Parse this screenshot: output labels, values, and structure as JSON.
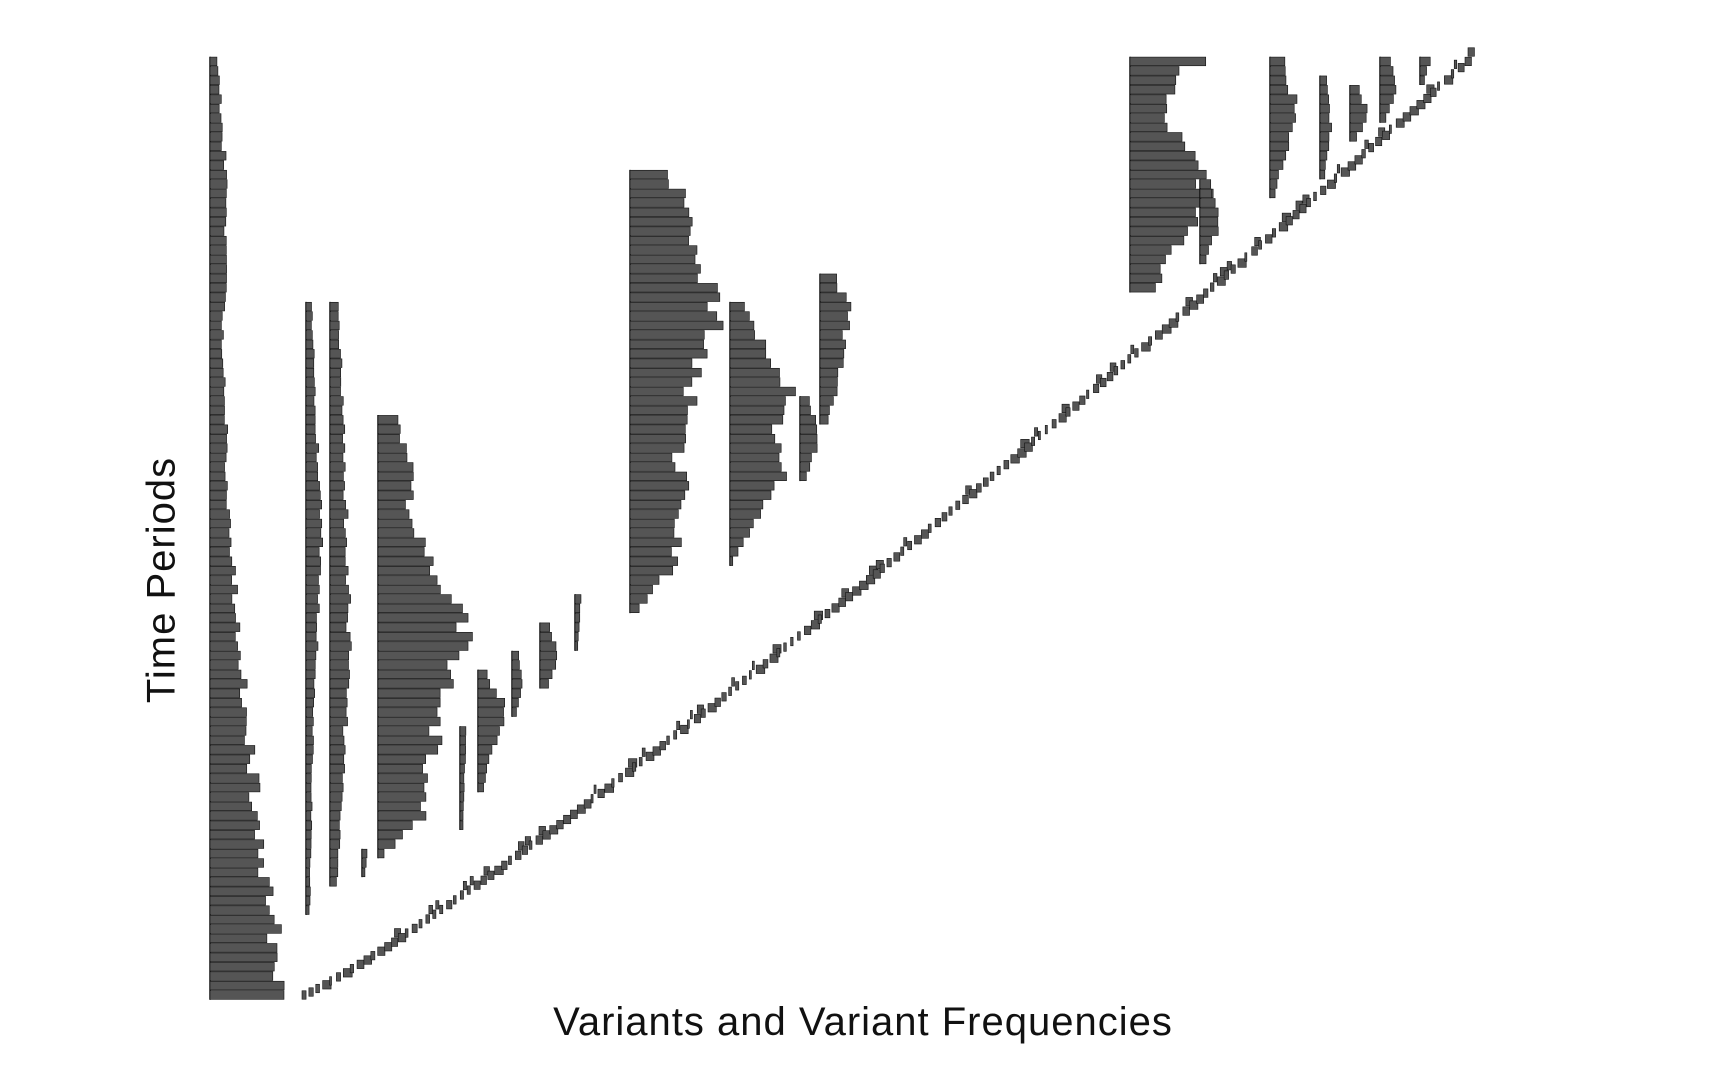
{
  "chart_data": {
    "type": "bar",
    "orientation": "horizontal",
    "xlabel": "Variants and Variant Frequencies",
    "ylabel": "Time Periods",
    "grid": false,
    "legend": "none",
    "periods": 100,
    "bar_color": "#555555",
    "variants": [
      {
        "start": 1,
        "end": 100,
        "offset": 0,
        "peak": 90,
        "profile": [
          [
            0,
            0.85
          ],
          [
            0.15,
            0.6
          ],
          [
            0.3,
            0.4
          ],
          [
            0.5,
            0.22
          ],
          [
            0.7,
            0.14
          ],
          [
            0.85,
            0.2
          ],
          [
            1,
            0.08
          ]
        ]
      },
      {
        "start": 10,
        "end": 74,
        "offset": 96,
        "peak": 18,
        "profile": [
          [
            0,
            0.2
          ],
          [
            0.3,
            0.4
          ],
          [
            0.6,
            0.9
          ],
          [
            0.8,
            0.6
          ],
          [
            1,
            0.3
          ]
        ]
      },
      {
        "start": 13,
        "end": 74,
        "offset": 120,
        "peak": 22,
        "profile": [
          [
            0,
            0.3
          ],
          [
            0.4,
            0.9
          ],
          [
            0.7,
            0.7
          ],
          [
            1,
            0.4
          ]
        ]
      },
      {
        "start": 14,
        "end": 16,
        "offset": 152,
        "peak": 6,
        "profile": [
          [
            0,
            0.5
          ],
          [
            1,
            1
          ]
        ]
      },
      {
        "start": 16,
        "end": 62,
        "offset": 168,
        "peak": 90,
        "profile": [
          [
            0,
            0.08
          ],
          [
            0.1,
            0.55
          ],
          [
            0.2,
            0.6
          ],
          [
            0.35,
            0.75
          ],
          [
            0.5,
            0.95
          ],
          [
            0.6,
            0.85
          ],
          [
            0.7,
            0.5
          ],
          [
            0.8,
            0.35
          ],
          [
            0.9,
            0.38
          ],
          [
            1,
            0.2
          ]
        ]
      },
      {
        "start": 19,
        "end": 29,
        "offset": 250,
        "peak": 6,
        "profile": [
          [
            0,
            0.5
          ],
          [
            1,
            1
          ]
        ]
      },
      {
        "start": 23,
        "end": 35,
        "offset": 268,
        "peak": 28,
        "profile": [
          [
            0,
            0.2
          ],
          [
            0.4,
            0.6
          ],
          [
            0.7,
            1
          ],
          [
            1,
            0.3
          ]
        ]
      },
      {
        "start": 31,
        "end": 37,
        "offset": 302,
        "peak": 12,
        "profile": [
          [
            0,
            0.4
          ],
          [
            0.5,
            1
          ],
          [
            1,
            0.5
          ]
        ]
      },
      {
        "start": 34,
        "end": 40,
        "offset": 330,
        "peak": 20,
        "profile": [
          [
            0,
            0.4
          ],
          [
            0.5,
            1
          ],
          [
            1,
            0.5
          ]
        ]
      },
      {
        "start": 38,
        "end": 43,
        "offset": 365,
        "peak": 6,
        "profile": [
          [
            0,
            0.5
          ],
          [
            1,
            1
          ]
        ]
      },
      {
        "start": 42,
        "end": 88,
        "offset": 420,
        "peak": 90,
        "profile": [
          [
            0,
            0.1
          ],
          [
            0.1,
            0.55
          ],
          [
            0.25,
            0.6
          ],
          [
            0.4,
            0.55
          ],
          [
            0.55,
            0.8
          ],
          [
            0.7,
            1
          ],
          [
            0.8,
            0.85
          ],
          [
            0.9,
            0.7
          ],
          [
            1,
            0.45
          ]
        ]
      },
      {
        "start": 47,
        "end": 74,
        "offset": 520,
        "peak": 65,
        "profile": [
          [
            0,
            0.05
          ],
          [
            0.2,
            0.55
          ],
          [
            0.35,
            0.85
          ],
          [
            0.5,
            0.65
          ],
          [
            0.65,
            1
          ],
          [
            0.8,
            0.6
          ],
          [
            1,
            0.25
          ]
        ]
      },
      {
        "start": 56,
        "end": 64,
        "offset": 590,
        "peak": 20,
        "profile": [
          [
            0,
            0.3
          ],
          [
            0.5,
            1
          ],
          [
            1,
            0.5
          ]
        ]
      },
      {
        "start": 62,
        "end": 77,
        "offset": 610,
        "peak": 30,
        "profile": [
          [
            0,
            0.3
          ],
          [
            0.4,
            0.8
          ],
          [
            0.8,
            1
          ],
          [
            1,
            0.5
          ]
        ]
      },
      {
        "start": 76,
        "end": 100,
        "offset": 920,
        "peak": 80,
        "profile": [
          [
            0,
            0.3
          ],
          [
            0.2,
            0.6
          ],
          [
            0.4,
            1
          ],
          [
            0.6,
            0.8
          ],
          [
            0.75,
            0.45
          ],
          [
            0.9,
            0.6
          ],
          [
            1,
            0.85
          ]
        ]
      },
      {
        "start": 79,
        "end": 87,
        "offset": 990,
        "peak": 20,
        "profile": [
          [
            0,
            0.3
          ],
          [
            0.5,
            1
          ],
          [
            1,
            0.5
          ]
        ]
      },
      {
        "start": 86,
        "end": 100,
        "offset": 1060,
        "peak": 30,
        "profile": [
          [
            0,
            0.2
          ],
          [
            0.3,
            0.5
          ],
          [
            0.55,
            1
          ],
          [
            0.8,
            0.7
          ],
          [
            1,
            0.5
          ]
        ]
      },
      {
        "start": 88,
        "end": 98,
        "offset": 1110,
        "peak": 12,
        "profile": [
          [
            0,
            0.4
          ],
          [
            0.5,
            1
          ],
          [
            1,
            0.5
          ]
        ]
      },
      {
        "start": 92,
        "end": 97,
        "offset": 1140,
        "peak": 18,
        "profile": [
          [
            0,
            0.4
          ],
          [
            0.5,
            1
          ],
          [
            1,
            0.6
          ]
        ]
      },
      {
        "start": 94,
        "end": 100,
        "offset": 1170,
        "peak": 16,
        "profile": [
          [
            0,
            0.4
          ],
          [
            0.5,
            1
          ],
          [
            1,
            0.6
          ]
        ]
      },
      {
        "start": 98,
        "end": 100,
        "offset": 1210,
        "peak": 10,
        "profile": [
          [
            0,
            0.5
          ],
          [
            1,
            1
          ]
        ]
      }
    ],
    "trail": {
      "x_start": 92,
      "x_end": 1255,
      "y_start": 1,
      "y_end": 100,
      "peak": 7
    }
  }
}
